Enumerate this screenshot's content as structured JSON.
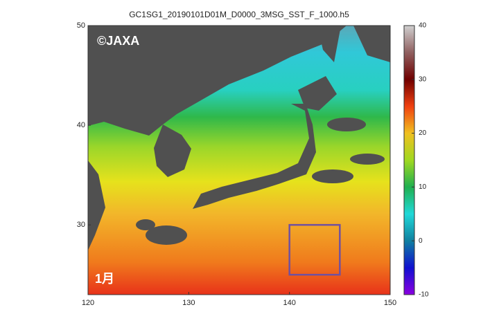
{
  "title": "GC1SG1_20190101D01M_D0000_3MSG_SST_F_1000.h5",
  "watermark": "©JAXA",
  "month": "1月",
  "map": {
    "xlim": [
      120,
      150
    ],
    "xticks": [
      120,
      130,
      140,
      150
    ],
    "ylim": [
      23,
      50
    ],
    "yticks": [
      30,
      40,
      50
    ],
    "box": {
      "x": [
        140,
        145
      ],
      "y": [
        25,
        30
      ]
    }
  },
  "colorbar": {
    "lim": [
      -10,
      40
    ],
    "ticks": [
      -10,
      0,
      10,
      20,
      30,
      40
    ]
  }
}
